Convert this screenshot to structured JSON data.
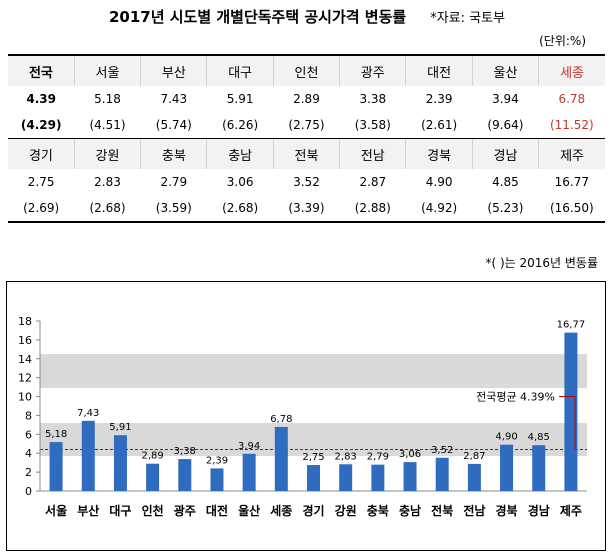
{
  "title": "2017년 시도별 개별단독주택 공시가격 변동률",
  "source": "*자료: 국토부",
  "unit": "(단위:%)",
  "footnote": "*(  )는 2016년 변동률",
  "table": {
    "row1": {
      "regions": [
        "전국",
        "서울",
        "부산",
        "대구",
        "인천",
        "광주",
        "대전",
        "울산",
        "세종"
      ],
      "values_2017": [
        "4.39",
        "5.18",
        "7.43",
        "5.91",
        "2.89",
        "3.38",
        "2.39",
        "3.94",
        "6.78"
      ],
      "values_2016": [
        "(4.29)",
        "(4.51)",
        "(5.74)",
        "(6.26)",
        "(2.75)",
        "(3.58)",
        "(2.61)",
        "(9.64)",
        "(11.52)"
      ]
    },
    "row2": {
      "regions": [
        "경기",
        "강원",
        "충북",
        "충남",
        "전북",
        "전남",
        "경북",
        "경남",
        "제주"
      ],
      "values_2017": [
        "2.75",
        "2.83",
        "2.79",
        "3.06",
        "3.52",
        "2.87",
        "4.90",
        "4.85",
        "16.77"
      ],
      "values_2016": [
        "(2.69)",
        "(2.68)",
        "(3.59)",
        "(2.68)",
        "(3.39)",
        "(2.88)",
        "(4.92)",
        "(5.23)",
        "(16.50)"
      ]
    }
  },
  "colors": {
    "bar": "#2f6cc0",
    "highlight": "#c0392b",
    "band": "#d9d9d9",
    "avg_line": "#c00000"
  },
  "chart_data": {
    "type": "bar",
    "categories": [
      "서울",
      "부산",
      "대구",
      "인천",
      "광주",
      "대전",
      "울산",
      "세종",
      "경기",
      "강원",
      "충북",
      "충남",
      "전북",
      "전남",
      "경북",
      "경남",
      "제주"
    ],
    "values": [
      5.18,
      7.43,
      5.91,
      2.89,
      3.38,
      2.39,
      3.94,
      6.78,
      2.75,
      2.83,
      2.79,
      3.06,
      3.52,
      2.87,
      4.9,
      4.85,
      16.77
    ],
    "value_labels": [
      "5,18",
      "7,43",
      "5,91",
      "2,89",
      "3,38",
      "2,39",
      "3,94",
      "6,78",
      "2,75",
      "2,83",
      "2,79",
      "3,06",
      "3,52",
      "2,87",
      "4,90",
      "4,85",
      "16,77"
    ],
    "ylim": [
      0,
      18
    ],
    "yticks": [
      0,
      2,
      4,
      6,
      8,
      10,
      12,
      14,
      16,
      18
    ],
    "average": {
      "label": "전국평균  4.39%",
      "value": 4.39
    },
    "bands": [
      [
        3.7,
        7.2
      ],
      [
        10.9,
        14.5
      ]
    ],
    "grid": false
  }
}
